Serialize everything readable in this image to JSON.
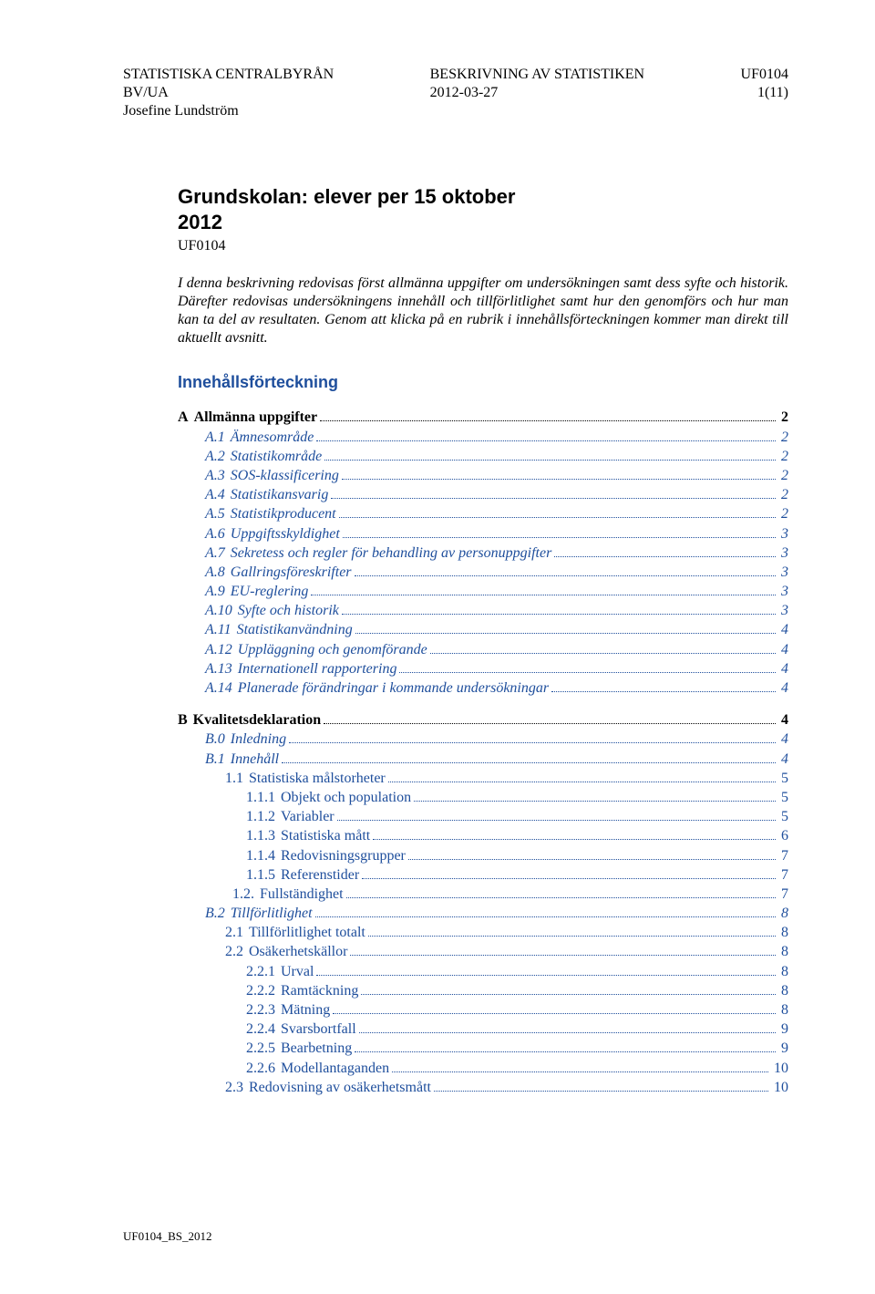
{
  "header": {
    "org": "STATISTISKA CENTRALBYRÅN",
    "dept": "BV/UA",
    "author": "Josefine Lundström",
    "docTitle": "BESKRIVNING AV STATISTIKEN",
    "date": "2012-03-27",
    "docCode": "UF0104",
    "pageOf": "1(11)"
  },
  "title1": "Grundskolan: elever per 15 oktober",
  "title2": "2012",
  "code": "UF0104",
  "intro": "I denna beskrivning redovisas först allmänna uppgifter om undersökningen samt dess syfte och historik. Därefter redovisas undersökningens innehåll och tillförlitlighet samt hur den genomförs och hur man kan ta del av resultaten. Genom att klicka på en rubrik i innehållsförteckningen kommer man direkt till aktuellt avsnitt.",
  "tocHeading": "Innehållsförteckning",
  "toc": [
    {
      "num": "A",
      "label": "Allmänna uppgifter",
      "page": "2",
      "style": "bold",
      "indent": 0
    },
    {
      "num": "A.1",
      "label": "Ämnesområde",
      "page": "2",
      "style": "italic link",
      "indent": 1
    },
    {
      "num": "A.2",
      "label": "Statistikområde",
      "page": "2",
      "style": "italic link",
      "indent": 1
    },
    {
      "num": "A.3",
      "label": "SOS-klassificering",
      "page": "2",
      "style": "italic link",
      "indent": 1
    },
    {
      "num": "A.4",
      "label": "Statistikansvarig",
      "page": "2",
      "style": "italic link",
      "indent": 1
    },
    {
      "num": "A.5",
      "label": "Statistikproducent",
      "page": "2",
      "style": "italic link",
      "indent": 1
    },
    {
      "num": "A.6",
      "label": "Uppgiftsskyldighet",
      "page": "3",
      "style": "italic link",
      "indent": 1
    },
    {
      "num": "A.7",
      "label": "Sekretess och regler för behandling av personuppgifter",
      "page": "3",
      "style": "italic link",
      "indent": 1
    },
    {
      "num": "A.8",
      "label": "Gallringsföreskrifter",
      "page": "3",
      "style": "italic link",
      "indent": 1
    },
    {
      "num": "A.9",
      "label": "EU-reglering",
      "page": "3",
      "style": "italic link",
      "indent": 1
    },
    {
      "num": "A.10",
      "label": "Syfte och historik",
      "page": "3",
      "style": "italic link",
      "indent": 1
    },
    {
      "num": "A.11",
      "label": "Statistikanvändning",
      "page": "4",
      "style": "italic link",
      "indent": 1
    },
    {
      "num": "A.12",
      "label": "Uppläggning och genomförande",
      "page": "4",
      "style": "italic link",
      "indent": 1
    },
    {
      "num": "A.13",
      "label": "Internationell rapportering",
      "page": "4",
      "style": "italic link",
      "indent": 1
    },
    {
      "num": "A.14",
      "label": "Planerade förändringar i kommande undersökningar",
      "page": "4",
      "style": "italic link",
      "indent": 1
    },
    {
      "gap": true
    },
    {
      "num": "B",
      "label": "Kvalitetsdeklaration",
      "page": "4",
      "style": "bold",
      "indent": 0
    },
    {
      "num": "B.0",
      "label": "Inledning",
      "page": "4",
      "style": "italic link",
      "indent": 1
    },
    {
      "num": "B.1",
      "label": "Innehåll",
      "page": "4",
      "style": "italic link",
      "indent": 1
    },
    {
      "num": "1.1",
      "label": "Statistiska målstorheter",
      "page": "5",
      "style": "link",
      "indent": 2
    },
    {
      "num": "1.1.1",
      "label": "Objekt och population",
      "page": "5",
      "style": "link",
      "indent": 3
    },
    {
      "num": "1.1.2",
      "label": "Variabler",
      "page": "5",
      "style": "link",
      "indent": 3
    },
    {
      "num": "1.1.3",
      "label": "Statistiska mått",
      "page": "6",
      "style": "link",
      "indent": 3
    },
    {
      "num": "1.1.4",
      "label": "Redovisningsgrupper",
      "page": "7",
      "style": "link",
      "indent": 3
    },
    {
      "num": "1.1.5",
      "label": "Referenstider",
      "page": "7",
      "style": "link",
      "indent": 3
    },
    {
      "num": "1.2.",
      "label": "Fullständighet",
      "page": "7",
      "style": "link",
      "indent": 25
    },
    {
      "num": "B.2",
      "label": "Tillförlitlighet",
      "page": "8",
      "style": "italic link",
      "indent": 1
    },
    {
      "num": "2.1",
      "label": "Tillförlitlighet totalt",
      "page": "8",
      "style": "link",
      "indent": 2
    },
    {
      "num": "2.2",
      "label": "Osäkerhetskällor",
      "page": "8",
      "style": "link",
      "indent": 2
    },
    {
      "num": "2.2.1",
      "label": "Urval",
      "page": "8",
      "style": "link",
      "indent": 3
    },
    {
      "num": "2.2.2",
      "label": "Ramtäckning",
      "page": "8",
      "style": "link",
      "indent": 3
    },
    {
      "num": "2.2.3",
      "label": "Mätning",
      "page": "8",
      "style": "link",
      "indent": 3
    },
    {
      "num": "2.2.4",
      "label": "Svarsbortfall",
      "page": "9",
      "style": "link",
      "indent": 3
    },
    {
      "num": "2.2.5",
      "label": "Bearbetning",
      "page": "9",
      "style": "link",
      "indent": 3
    },
    {
      "num": "2.2.6",
      "label": "Modellantaganden",
      "page": "10",
      "style": "link",
      "indent": 3
    },
    {
      "num": "2.3",
      "label": "Redovisning av osäkerhetsmått",
      "page": "10",
      "style": "link",
      "indent": 2
    }
  ],
  "footer": "UF0104_BS_2012"
}
